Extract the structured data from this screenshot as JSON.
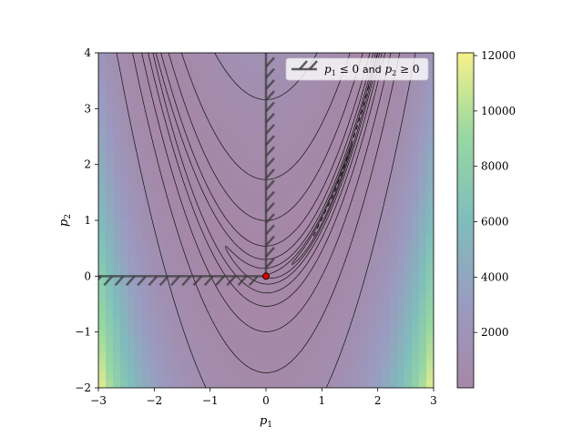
{
  "chart_data": {
    "type": "heatmap",
    "function": "Rosenbrock-like objective f(p1,p2) with contour lines",
    "xlabel": "p_1",
    "ylabel": "p_2",
    "xlim": [
      -3,
      3
    ],
    "ylim": [
      -2,
      4
    ],
    "x_ticks": [
      -3,
      -2,
      -1,
      0,
      1,
      2,
      3
    ],
    "y_ticks": [
      -2,
      -1,
      0,
      1,
      2,
      3,
      4
    ],
    "x_tick_labels": [
      "−3",
      "−2",
      "−1",
      "0",
      "1",
      "2",
      "3"
    ],
    "y_tick_labels": [
      "−2",
      "−1",
      "0",
      "1",
      "2",
      "3",
      "4"
    ],
    "colorbar": {
      "min": 0,
      "max": 12100,
      "ticks": [
        2000,
        4000,
        6000,
        8000,
        10000,
        12000
      ],
      "tick_labels": [
        "2000",
        "4000",
        "6000",
        "8000",
        "10000",
        "12000"
      ],
      "colormap": "viridis (alpha 0.5)"
    },
    "contour_levels": [
      0.3,
      1,
      3,
      10,
      30,
      100,
      300,
      1000
    ],
    "constraint": {
      "label": "p_1 ≤ 0 and p_2 ≥ 0",
      "legend_label_prefix": "p",
      "segments": [
        {
          "x": [
            -3,
            0
          ],
          "y": [
            0,
            0
          ]
        },
        {
          "x": [
            0,
            0
          ],
          "y": [
            0,
            4
          ]
        }
      ]
    },
    "optimum_point": {
      "x": 0,
      "y": 0,
      "color": "#e00000"
    },
    "path": {
      "x": [
        0.85,
        1.2,
        1.45,
        1.7,
        1.85
      ],
      "y": [
        0.72,
        1.44,
        2.1,
        2.9,
        3.45
      ],
      "style": "dashed"
    },
    "legend": {
      "placement": "top-right"
    }
  },
  "axes": {
    "xlabel_main": "p",
    "xlabel_sub": "1",
    "ylabel_main": "p",
    "ylabel_sub": "2"
  },
  "legend": {
    "p1": "p",
    "s1": "1",
    "rel1": " ≤ 0 ",
    "and": "and",
    "p2": " p",
    "s2": "2",
    "rel2": " ≥ 0"
  }
}
